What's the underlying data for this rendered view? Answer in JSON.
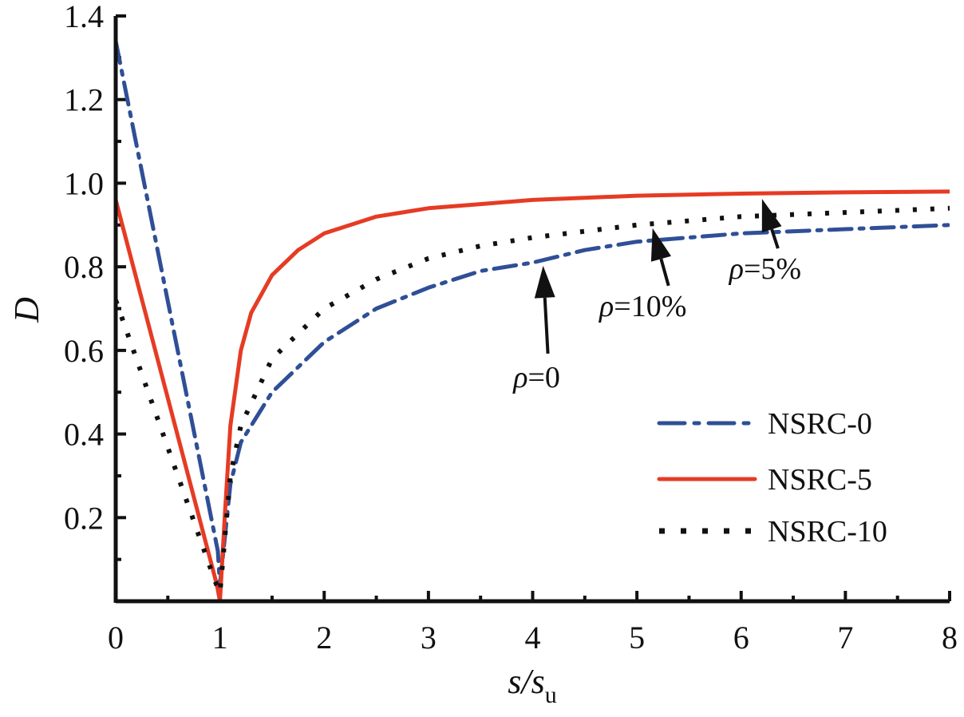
{
  "chart_data": {
    "type": "line",
    "xlabel": {
      "main": "s/s",
      "sub": "u"
    },
    "ylabel": "D",
    "xlim": [
      0,
      8
    ],
    "ylim": [
      0,
      1.4
    ],
    "x_ticks": [
      "0",
      "1",
      "2",
      "3",
      "4",
      "5",
      "6",
      "7",
      "8"
    ],
    "y_ticks": [
      {
        "value": 0.2,
        "label": "0.2"
      },
      {
        "value": 0.4,
        "label": "0.4"
      },
      {
        "value": 0.6,
        "label": "0.6"
      },
      {
        "value": 0.8,
        "label": "0.8"
      },
      {
        "value": 1.0,
        "label": "1.0"
      },
      {
        "value": 1.2,
        "label": "1.2"
      },
      {
        "value": 1.4,
        "label": "1.4"
      }
    ],
    "grid": false,
    "legend_position": "bottom-right",
    "series": [
      {
        "name": "NSRC-0",
        "color": "#2f4f96",
        "style": "dash-dot",
        "x": [
          0,
          0.98,
          1.0,
          1.1,
          1.2,
          1.5,
          2,
          2.5,
          3,
          3.5,
          4,
          4.5,
          5,
          6,
          7,
          8
        ],
        "y": [
          1.34,
          0.12,
          0.04,
          0.28,
          0.38,
          0.5,
          0.62,
          0.7,
          0.75,
          0.79,
          0.81,
          0.84,
          0.86,
          0.88,
          0.89,
          0.9
        ]
      },
      {
        "name": "NSRC-5",
        "color": "#e63b24",
        "style": "solid",
        "x": [
          0,
          0.97,
          1.0,
          1.05,
          1.1,
          1.2,
          1.3,
          1.5,
          1.75,
          2,
          2.5,
          3,
          3.5,
          4,
          5,
          6,
          7,
          8
        ],
        "y": [
          0.96,
          0.04,
          0.0,
          0.22,
          0.42,
          0.6,
          0.69,
          0.78,
          0.84,
          0.88,
          0.92,
          0.94,
          0.95,
          0.96,
          0.97,
          0.975,
          0.978,
          0.98
        ]
      },
      {
        "name": "NSRC-10",
        "color": "#111111",
        "style": "dotted",
        "x": [
          0,
          0.95,
          1.0,
          1.1,
          1.2,
          1.5,
          2,
          2.5,
          3,
          3.5,
          4,
          5,
          6,
          7,
          8
        ],
        "y": [
          0.72,
          0.05,
          0.02,
          0.3,
          0.42,
          0.58,
          0.7,
          0.77,
          0.82,
          0.85,
          0.87,
          0.9,
          0.92,
          0.93,
          0.94
        ]
      }
    ],
    "annotations": [
      {
        "greek": "ρ",
        "text": "=0",
        "x": 4.1,
        "y": 0.81
      },
      {
        "greek": "ρ",
        "text": "=10%",
        "x": 5.15,
        "y": 0.9
      },
      {
        "greek": "ρ",
        "text": "=5%",
        "x": 6.2,
        "y": 0.97
      }
    ]
  }
}
